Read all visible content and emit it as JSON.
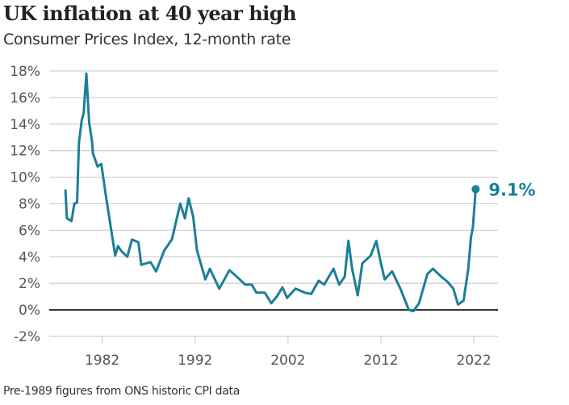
{
  "chart_data": {
    "type": "line",
    "title": "UK inflation at 40 year high",
    "subtitle": "Consumer Prices Index, 12-month rate",
    "footnote": "Pre-1989 figures from ONS historic CPI data",
    "xlabel": "",
    "ylabel": "",
    "xlim": [
      1976.3,
      2024.6
    ],
    "ylim": [
      -2,
      18
    ],
    "x_ticks": [
      1982,
      1992,
      2002,
      2012,
      2022
    ],
    "x_tick_labels": [
      "1982",
      "1992",
      "2002",
      "2012",
      "2022"
    ],
    "y_ticks": [
      -2,
      0,
      2,
      4,
      6,
      8,
      10,
      12,
      14,
      16,
      18
    ],
    "y_tick_labels": [
      "-2%",
      "0%",
      "2%",
      "4%",
      "6%",
      "8%",
      "10%",
      "12%",
      "14%",
      "16%",
      "18%"
    ],
    "grid": true,
    "line_color": "#1b7f98",
    "end_annotation": "9.1%",
    "series": [
      {
        "x": [
          1978.05,
          1978.2,
          1978.7,
          1979.0,
          1979.3,
          1979.5,
          1979.8,
          1980.0,
          1980.3,
          1980.6,
          1980.9,
          1981.0,
          1981.5,
          1981.9,
          1982.4,
          1983.0,
          1983.4,
          1983.7,
          1984.1,
          1984.7,
          1985.2,
          1985.9,
          1986.2,
          1987.2,
          1987.8,
          1988.7,
          1989.5,
          1990.4,
          1990.9,
          1991.3,
          1991.8,
          1992.2,
          1993.1,
          1993.6,
          1994.6,
          1995.7,
          1996.8,
          1997.4,
          1998.1,
          1998.6,
          1999.5,
          2000.2,
          2000.8,
          2001.4,
          2001.9,
          2002.8,
          2003.8,
          2004.5,
          2005.3,
          2005.9,
          2006.9,
          2007.5,
          2008.1,
          2008.5,
          2008.9,
          2009.5,
          2010.0,
          2010.9,
          2011.5,
          2012.0,
          2012.4,
          2013.2,
          2014.1,
          2015.0,
          2015.5,
          2016.1,
          2017.0,
          2017.6,
          2018.5,
          2019.2,
          2019.8,
          2020.3,
          2020.9,
          2021.4,
          2021.7,
          2021.9,
          2022.2
        ],
        "values": [
          9.0,
          6.9,
          6.7,
          8.0,
          8.1,
          12.6,
          14.3,
          14.8,
          17.8,
          14.1,
          12.7,
          11.8,
          10.8,
          11.0,
          8.6,
          5.9,
          4.1,
          4.8,
          4.4,
          4.0,
          5.3,
          5.1,
          3.4,
          3.6,
          2.9,
          4.5,
          5.3,
          8.0,
          6.9,
          8.4,
          7.0,
          4.5,
          2.3,
          3.1,
          1.6,
          3.0,
          2.3,
          1.9,
          1.9,
          1.3,
          1.3,
          0.5,
          1.0,
          1.7,
          0.9,
          1.6,
          1.3,
          1.2,
          2.2,
          1.9,
          3.1,
          1.9,
          2.5,
          5.2,
          3.1,
          1.1,
          3.5,
          4.1,
          5.2,
          3.5,
          2.3,
          2.9,
          1.6,
          0.0,
          -0.1,
          0.5,
          2.7,
          3.1,
          2.5,
          2.1,
          1.6,
          0.4,
          0.7,
          3.1,
          5.5,
          6.2,
          9.1
        ]
      }
    ]
  }
}
